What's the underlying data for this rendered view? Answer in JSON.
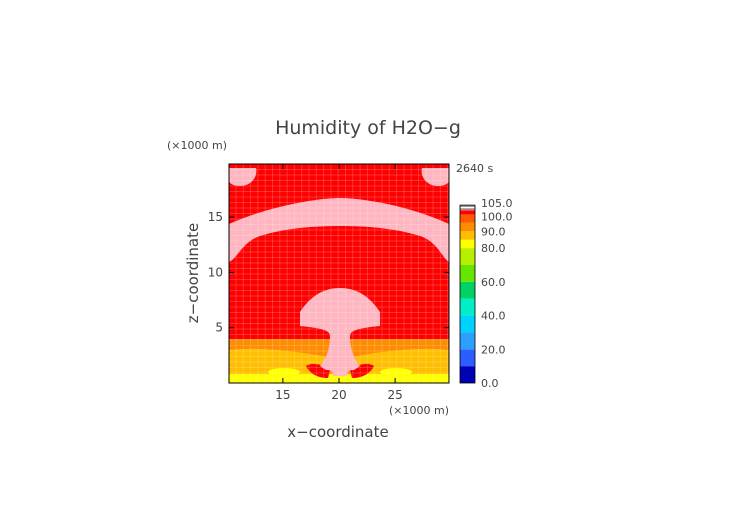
{
  "chart_data": {
    "type": "heatmap",
    "title": "Humidity of H2O−g",
    "time_label": "2640 s",
    "xlabel": "x−coordinate",
    "ylabel": "z−coordinate",
    "x_unit": "(×1000 m)",
    "z_unit": "(×1000 m)",
    "xlim": [
      10.2,
      29.8
    ],
    "ylim": [
      0,
      19.8
    ],
    "x_ticks": [
      15,
      20,
      25
    ],
    "x_tick_labels": [
      "15",
      "20",
      "25"
    ],
    "y_ticks": [
      5,
      10,
      15
    ],
    "y_tick_labels": [
      "5",
      "10",
      "15"
    ],
    "colorbar": {
      "levels": [
        0,
        10,
        20,
        30,
        40,
        50,
        60,
        70,
        80,
        85,
        90,
        95,
        100,
        102.5,
        105
      ],
      "colors": [
        "#0000b4",
        "#2d5cff",
        "#2da0ff",
        "#00d2ff",
        "#00eec8",
        "#00d264",
        "#64e600",
        "#b4f000",
        "#ffff00",
        "#ffbe00",
        "#ff8c00",
        "#ff5a00",
        "#ff0000",
        "#ffb6c1"
      ],
      "labels": [
        "0.0",
        "20.0",
        "40.0",
        "60.0",
        "80.0",
        "90.0",
        "100.0",
        "105.0"
      ],
      "label_values": [
        0,
        20,
        40,
        60,
        80,
        90,
        100,
        105
      ]
    }
  }
}
